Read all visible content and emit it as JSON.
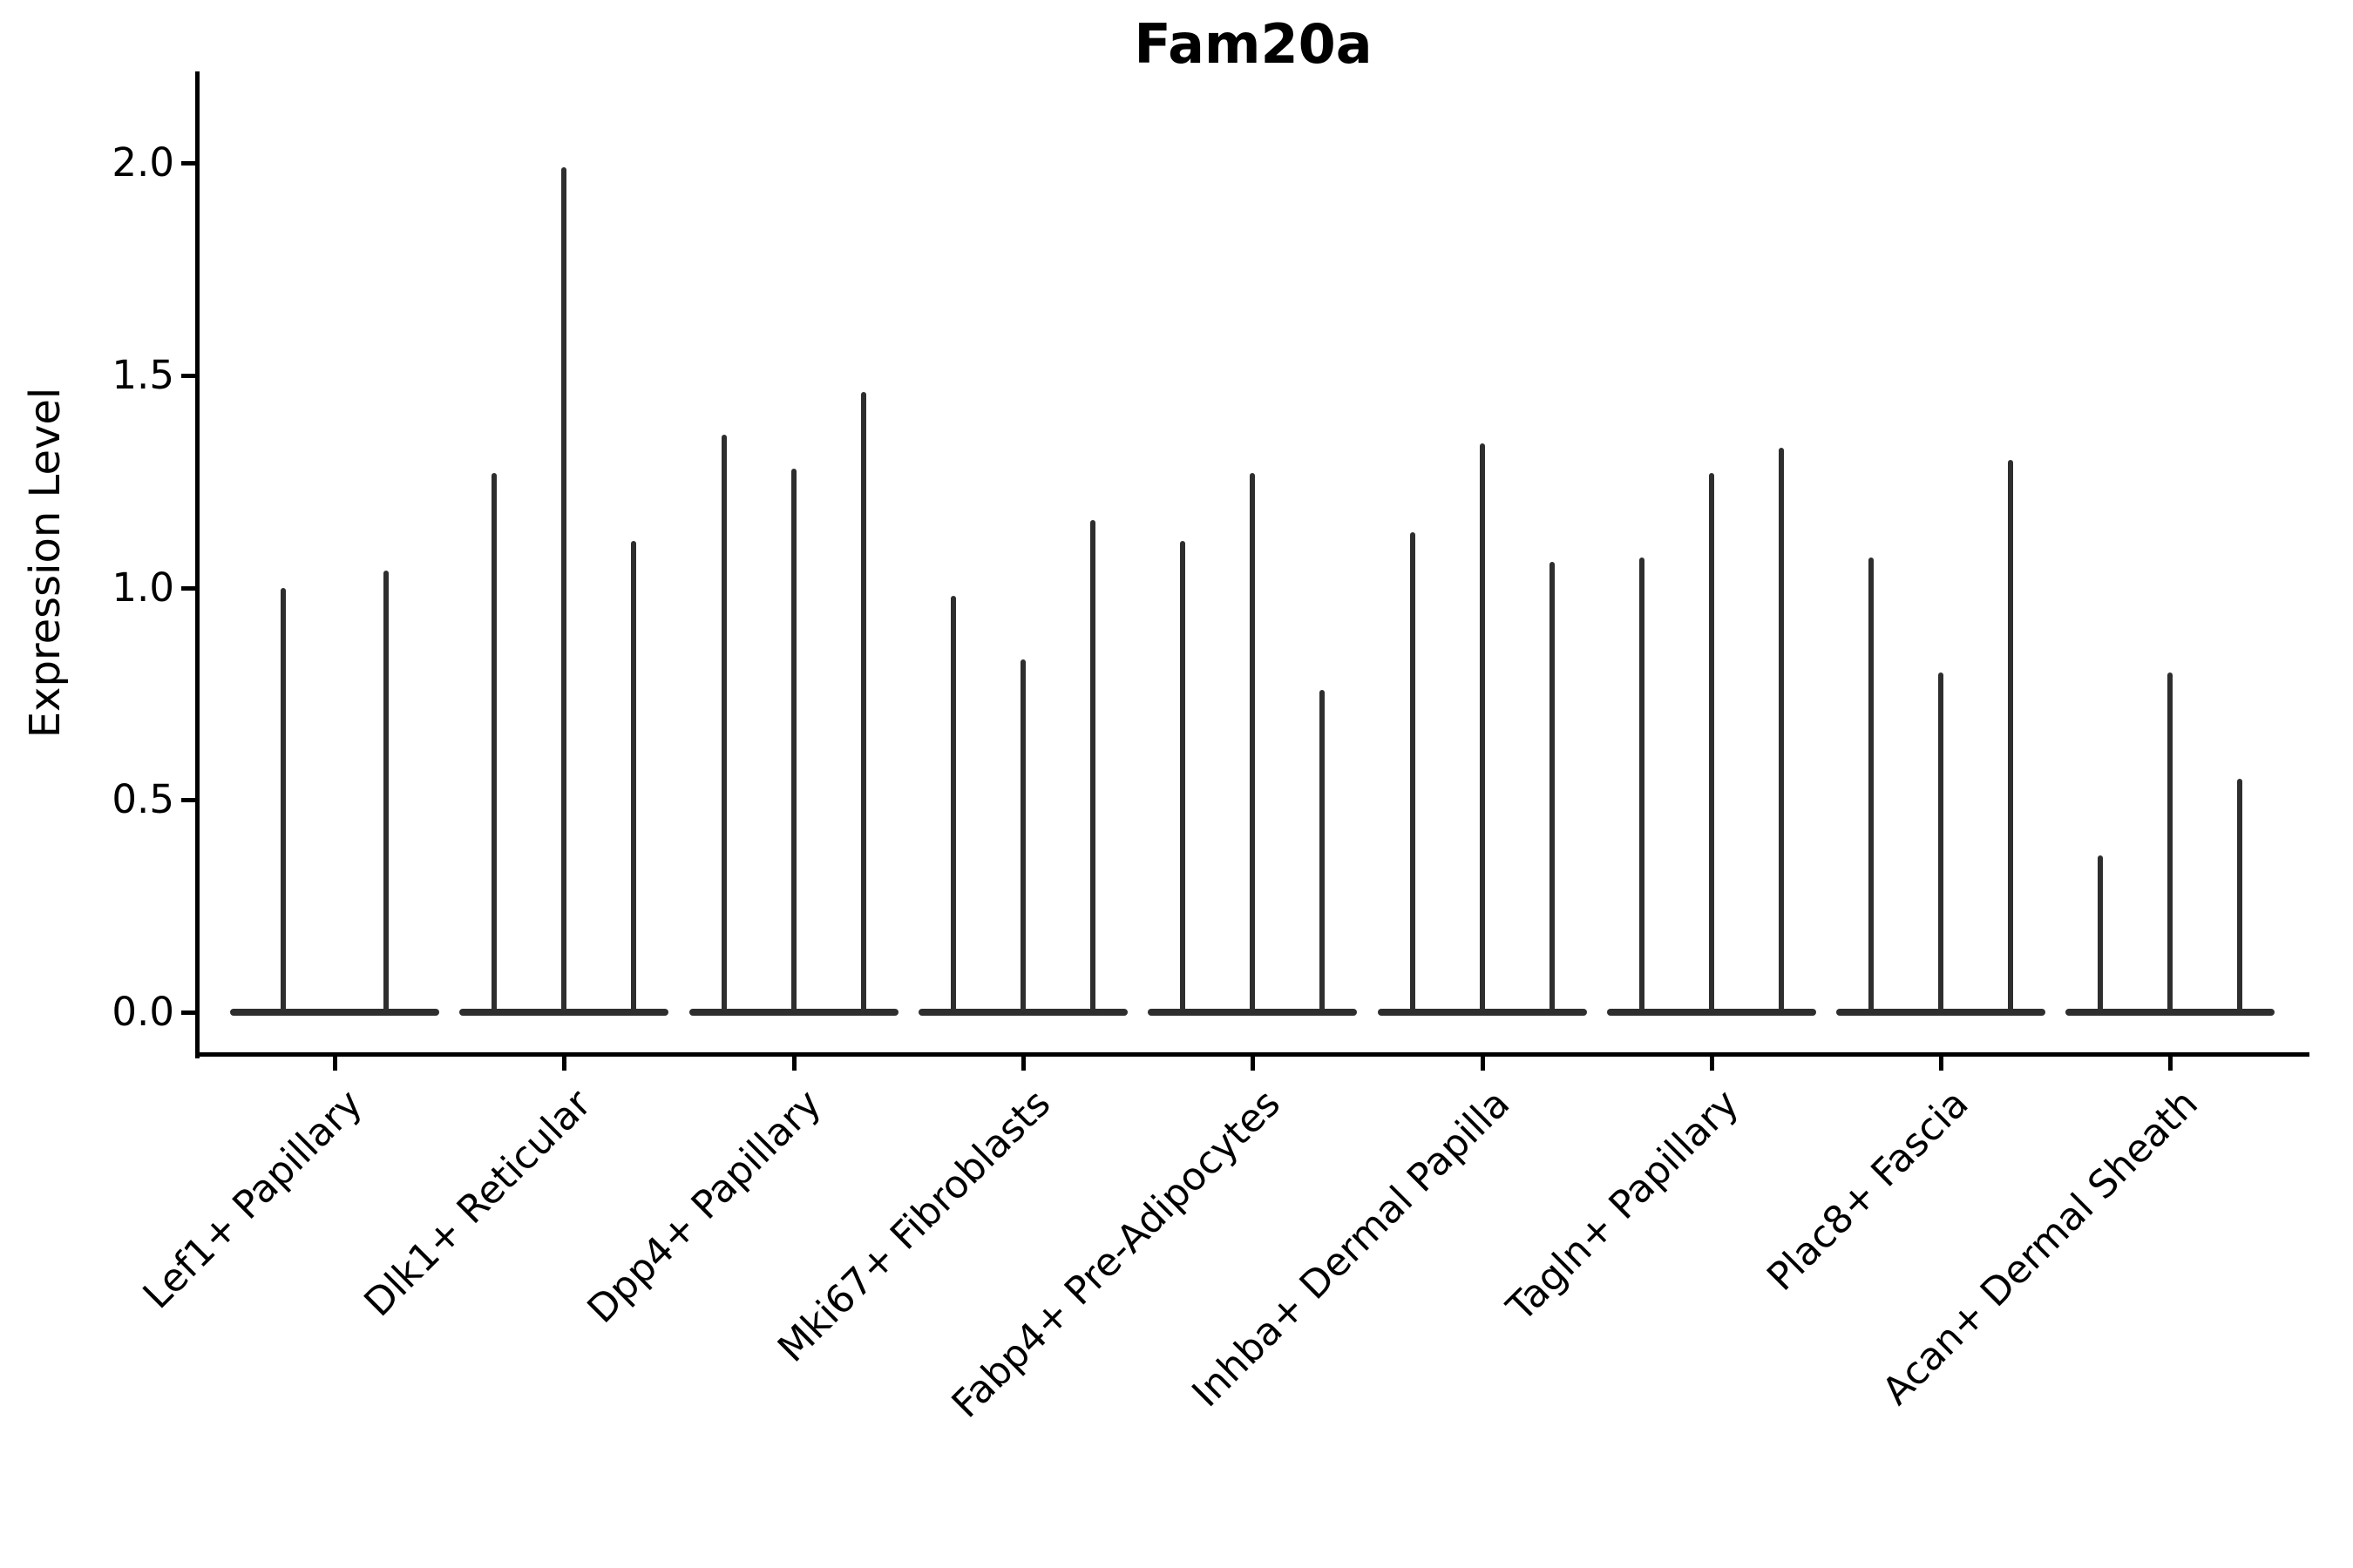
{
  "title": "Fam20a",
  "y_axis": {
    "label": "Expression Level",
    "tick_labels": [
      "0.0",
      "0.5",
      "1.0",
      "1.5",
      "2.0"
    ]
  },
  "chart_data": {
    "type": "violin",
    "title": "Fam20a",
    "xlabel": "",
    "ylabel": "Expression Level",
    "ylim": [
      0,
      2.08
    ],
    "y_ticks": [
      0.0,
      0.5,
      1.0,
      1.5,
      2.0
    ],
    "grid": false,
    "legend": "none",
    "shape_hint": "Each violin is collapsed to a thin vertical spike rising from a wide flat base at expression 0 up to its peak value",
    "categories": [
      "Lef1+ Papillary",
      "Dlk1+ Reticular",
      "Dpp4+ Papillary",
      "Mki67+ Fibroblasts",
      "Fabp4+ Pre-Adipocytes",
      "Inhba+ Dermal Papilla",
      "Tagln+ Papillary",
      "Plac8+ Fascia",
      "Acan+ Dermal Sheath"
    ],
    "groups": [
      {
        "category": "Lef1+ Papillary",
        "violin_peaks": [
          1.0,
          1.04
        ]
      },
      {
        "category": "Dlk1+ Reticular",
        "violin_peaks": [
          1.27,
          1.99,
          1.11
        ]
      },
      {
        "category": "Dpp4+ Papillary",
        "violin_peaks": [
          1.36,
          1.28,
          1.46
        ]
      },
      {
        "category": "Mki67+ Fibroblasts",
        "violin_peaks": [
          0.98,
          0.83,
          1.16
        ]
      },
      {
        "category": "Fabp4+ Pre-Adipocytes",
        "violin_peaks": [
          1.11,
          1.27,
          0.76
        ]
      },
      {
        "category": "Inhba+ Dermal Papilla",
        "violin_peaks": [
          1.13,
          1.34,
          1.06
        ]
      },
      {
        "category": "Tagln+ Papillary",
        "violin_peaks": [
          1.07,
          1.27,
          1.33
        ]
      },
      {
        "category": "Plac8+ Fascia",
        "violin_peaks": [
          1.07,
          0.8,
          1.3
        ]
      },
      {
        "category": "Acan+ Dermal Sheath",
        "violin_peaks": [
          0.37,
          0.8,
          0.55
        ]
      }
    ]
  },
  "colors": {
    "violin": "#2e2e2e",
    "axis": "#000000",
    "text": "#000000",
    "background": "#ffffff"
  }
}
